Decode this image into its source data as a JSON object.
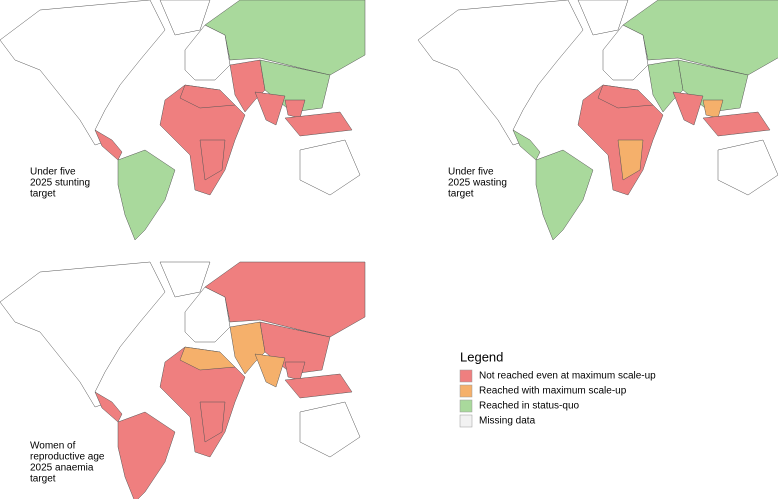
{
  "panels": [
    {
      "label": [
        "Under five",
        "2025 stunting",
        "target"
      ]
    },
    {
      "label": [
        "Under five",
        "2025 wasting",
        "target"
      ]
    },
    {
      "label": [
        "Women of",
        "reproductive age",
        "2025 anaemia",
        "target"
      ]
    }
  ],
  "legend": {
    "title": "Legend",
    "items": [
      {
        "label": "Not reached even at maximum scale-up",
        "color": "#ef7f7f"
      },
      {
        "label": "Reached with maximum scale-up",
        "color": "#f5b06b"
      },
      {
        "label": "Reached in status-quo",
        "color": "#a9d99c"
      },
      {
        "label": "Missing data",
        "color": "#f2f2f2"
      }
    ]
  }
}
